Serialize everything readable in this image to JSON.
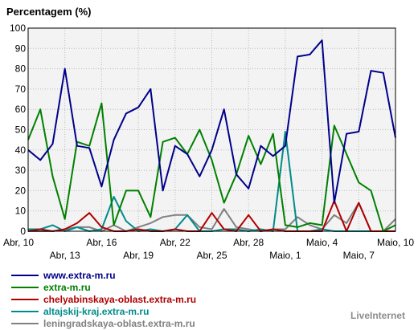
{
  "chart_data": {
    "type": "line",
    "ylabel": "Percentagem (%)",
    "ylim": [
      0,
      100
    ],
    "yticks": [
      0,
      10,
      20,
      30,
      40,
      50,
      60,
      70,
      80,
      90,
      100
    ],
    "grid": true,
    "x_count": 31,
    "x_tick_labels": [
      {
        "label": "Abr, 10",
        "index": 0,
        "row": 1
      },
      {
        "label": "Abr, 13",
        "index": 3,
        "row": 2
      },
      {
        "label": "Abr, 16",
        "index": 6,
        "row": 1
      },
      {
        "label": "Abr, 19",
        "index": 9,
        "row": 2
      },
      {
        "label": "Abr, 22",
        "index": 12,
        "row": 1
      },
      {
        "label": "Abr, 25",
        "index": 15,
        "row": 2
      },
      {
        "label": "Abr, 28",
        "index": 18,
        "row": 1
      },
      {
        "label": "Maio, 1",
        "index": 21,
        "row": 2
      },
      {
        "label": "Maio, 4",
        "index": 24,
        "row": 1
      },
      {
        "label": "Maio, 7",
        "index": 27,
        "row": 2
      },
      {
        "label": "Maio, 10",
        "index": 30,
        "row": 1
      }
    ],
    "series": [
      {
        "name": "www.extra-m.ru",
        "color": "#00008b",
        "values": [
          40,
          35,
          43,
          80,
          42,
          41,
          22,
          45,
          58,
          61,
          70,
          20,
          42,
          38,
          27,
          40,
          60,
          28,
          21,
          42,
          37,
          42,
          86,
          87,
          94,
          14,
          48,
          49,
          79,
          78,
          46
        ]
      },
      {
        "name": "extra-m.ru",
        "color": "#008000",
        "values": [
          45,
          60,
          27,
          6,
          44,
          42,
          63,
          3,
          20,
          20,
          7,
          44,
          46,
          38,
          50,
          35,
          14,
          28,
          47,
          33,
          48,
          3,
          2,
          4,
          3,
          52,
          38,
          24,
          20,
          0,
          3
        ]
      },
      {
        "name": "chelyabinskaya-oblast.extra-m.ru",
        "color": "#b00000",
        "values": [
          0,
          1,
          0,
          1,
          4,
          9,
          2,
          0,
          0,
          1,
          0,
          0,
          1,
          0,
          0,
          9,
          1,
          0,
          8,
          0,
          1,
          0,
          0,
          0,
          0,
          15,
          0,
          14,
          0,
          0,
          0
        ]
      },
      {
        "name": "altajskij-kraj.extra-m.ru",
        "color": "#008b8b",
        "values": [
          1,
          1,
          3,
          0,
          2,
          0,
          1,
          17,
          5,
          0,
          1,
          0,
          1,
          8,
          0,
          0,
          1,
          1,
          0,
          1,
          0,
          49,
          0,
          0,
          1,
          0,
          0,
          0,
          0,
          0,
          0
        ]
      },
      {
        "name": "leningradskaya-oblast.extra-m.ru",
        "color": "#808080",
        "values": [
          0,
          0,
          0,
          1,
          2,
          2,
          0,
          3,
          0,
          2,
          4,
          7,
          8,
          8,
          2,
          1,
          11,
          2,
          1,
          0,
          1,
          1,
          7,
          3,
          1,
          8,
          4,
          14,
          0,
          0,
          6
        ]
      }
    ]
  },
  "brand": "LiveInternet"
}
